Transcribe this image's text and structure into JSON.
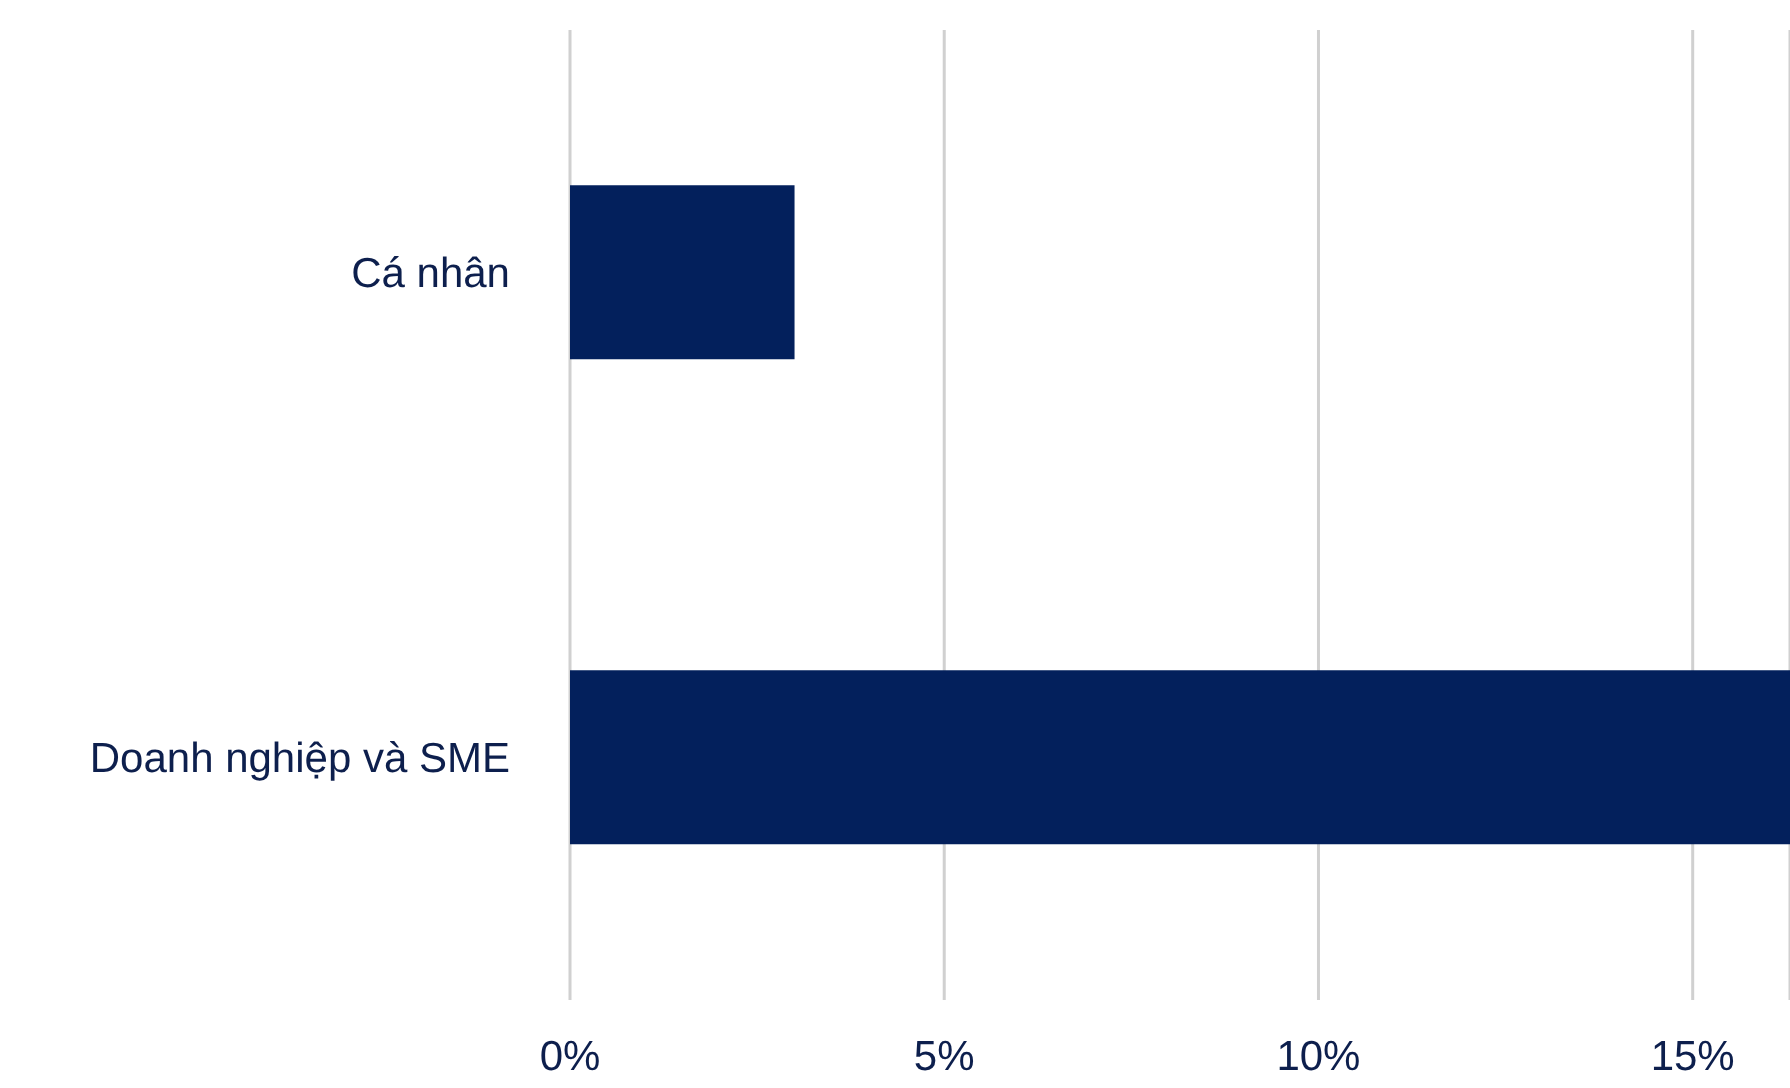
{
  "chart_data": {
    "type": "bar",
    "orientation": "horizontal",
    "categories": [
      "Cá nhân",
      "Doanh nghiệp và SME"
    ],
    "values": [
      3.0,
      16.3
    ],
    "color": "#03205c",
    "xlim": [
      0,
      16.3
    ],
    "xticks": [
      {
        "value": 0,
        "label": "0%"
      },
      {
        "value": 5,
        "label": "5%"
      },
      {
        "value": 10,
        "label": "10%"
      },
      {
        "value": 15,
        "label": "15%"
      }
    ],
    "grid": "x",
    "legend": false
  }
}
